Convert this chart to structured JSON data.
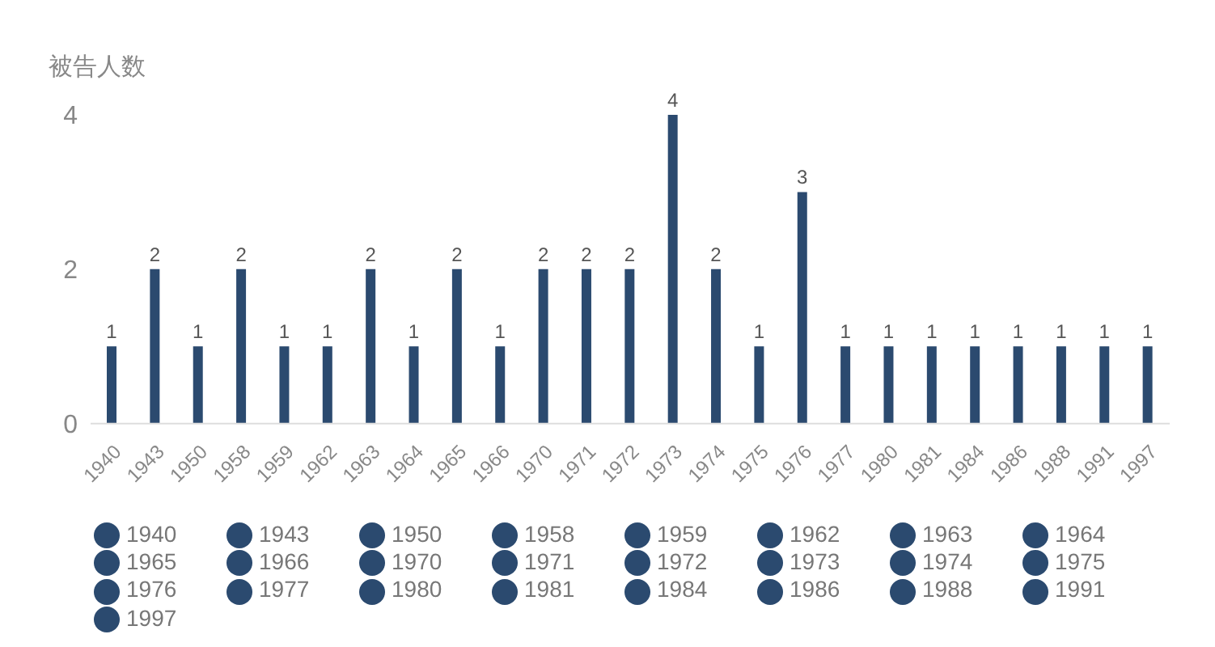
{
  "chart_data": {
    "type": "bar",
    "ylabel": "被告人数",
    "stacked": true,
    "categories": [
      "1940",
      "1943",
      "1950",
      "1958",
      "1959",
      "1962",
      "1963",
      "1964",
      "1965",
      "1966",
      "1970",
      "1971",
      "1972",
      "1973",
      "1974",
      "1975",
      "1976",
      "1977",
      "1980",
      "1981",
      "1984",
      "1986",
      "1988",
      "1991",
      "1997"
    ],
    "series": [
      {
        "name": "1940",
        "color": "#2b4a6f",
        "values": [
          1,
          null,
          null,
          null,
          null,
          null,
          null,
          null,
          null,
          null,
          null,
          null,
          null,
          null,
          null,
          null,
          null,
          null,
          null,
          null,
          null,
          null,
          null,
          null,
          null
        ]
      },
      {
        "name": "1943",
        "color": "#2b4a6f",
        "values": [
          null,
          2,
          null,
          null,
          null,
          null,
          null,
          null,
          null,
          null,
          null,
          null,
          null,
          null,
          null,
          null,
          null,
          null,
          null,
          null,
          null,
          null,
          null,
          null,
          null
        ]
      },
      {
        "name": "1950",
        "color": "#2b4a6f",
        "values": [
          null,
          null,
          1,
          null,
          null,
          null,
          null,
          null,
          null,
          null,
          null,
          null,
          null,
          null,
          null,
          null,
          null,
          null,
          null,
          null,
          null,
          null,
          null,
          null,
          null
        ]
      },
      {
        "name": "1958",
        "color": "#2b4a6f",
        "values": [
          null,
          null,
          null,
          2,
          null,
          null,
          null,
          null,
          null,
          null,
          null,
          null,
          null,
          null,
          null,
          null,
          null,
          null,
          null,
          null,
          null,
          null,
          null,
          null,
          null
        ]
      },
      {
        "name": "1959",
        "color": "#2b4a6f",
        "values": [
          null,
          null,
          null,
          null,
          1,
          null,
          null,
          null,
          null,
          null,
          null,
          null,
          null,
          null,
          null,
          null,
          null,
          null,
          null,
          null,
          null,
          null,
          null,
          null,
          null
        ]
      },
      {
        "name": "1962",
        "color": "#2b4a6f",
        "values": [
          null,
          null,
          null,
          null,
          null,
          1,
          null,
          null,
          null,
          null,
          null,
          null,
          null,
          null,
          null,
          null,
          null,
          null,
          null,
          null,
          null,
          null,
          null,
          null,
          null
        ]
      },
      {
        "name": "1963",
        "color": "#2b4a6f",
        "values": [
          null,
          null,
          null,
          null,
          null,
          null,
          2,
          null,
          null,
          null,
          null,
          null,
          null,
          null,
          null,
          null,
          null,
          null,
          null,
          null,
          null,
          null,
          null,
          null,
          null
        ]
      },
      {
        "name": "1964",
        "color": "#2b4a6f",
        "values": [
          null,
          null,
          null,
          null,
          null,
          null,
          null,
          1,
          null,
          null,
          null,
          null,
          null,
          null,
          null,
          null,
          null,
          null,
          null,
          null,
          null,
          null,
          null,
          null,
          null
        ]
      },
      {
        "name": "1965",
        "color": "#2b4a6f",
        "values": [
          null,
          null,
          null,
          null,
          null,
          null,
          null,
          null,
          2,
          null,
          null,
          null,
          null,
          null,
          null,
          null,
          null,
          null,
          null,
          null,
          null,
          null,
          null,
          null,
          null
        ]
      },
      {
        "name": "1966",
        "color": "#2b4a6f",
        "values": [
          null,
          null,
          null,
          null,
          null,
          null,
          null,
          null,
          null,
          1,
          null,
          null,
          null,
          null,
          null,
          null,
          null,
          null,
          null,
          null,
          null,
          null,
          null,
          null,
          null
        ]
      },
      {
        "name": "1970",
        "color": "#2b4a6f",
        "values": [
          null,
          null,
          null,
          null,
          null,
          null,
          null,
          null,
          null,
          null,
          2,
          null,
          null,
          null,
          null,
          null,
          null,
          null,
          null,
          null,
          null,
          null,
          null,
          null,
          null
        ]
      },
      {
        "name": "1971",
        "color": "#2b4a6f",
        "values": [
          null,
          null,
          null,
          null,
          null,
          null,
          null,
          null,
          null,
          null,
          null,
          2,
          null,
          null,
          null,
          null,
          null,
          null,
          null,
          null,
          null,
          null,
          null,
          null,
          null
        ]
      },
      {
        "name": "1972",
        "color": "#2b4a6f",
        "values": [
          null,
          null,
          null,
          null,
          null,
          null,
          null,
          null,
          null,
          null,
          null,
          null,
          2,
          null,
          null,
          null,
          null,
          null,
          null,
          null,
          null,
          null,
          null,
          null,
          null
        ]
      },
      {
        "name": "1973",
        "color": "#2b4a6f",
        "values": [
          null,
          null,
          null,
          null,
          null,
          null,
          null,
          null,
          null,
          null,
          null,
          null,
          null,
          4,
          null,
          null,
          null,
          null,
          null,
          null,
          null,
          null,
          null,
          null,
          null
        ]
      },
      {
        "name": "1974",
        "color": "#2b4a6f",
        "values": [
          null,
          null,
          null,
          null,
          null,
          null,
          null,
          null,
          null,
          null,
          null,
          null,
          null,
          null,
          2,
          null,
          null,
          null,
          null,
          null,
          null,
          null,
          null,
          null,
          null
        ]
      },
      {
        "name": "1975",
        "color": "#2b4a6f",
        "values": [
          null,
          null,
          null,
          null,
          null,
          null,
          null,
          null,
          null,
          null,
          null,
          null,
          null,
          null,
          null,
          1,
          null,
          null,
          null,
          null,
          null,
          null,
          null,
          null,
          null
        ]
      },
      {
        "name": "1976",
        "color": "#2b4a6f",
        "values": [
          null,
          null,
          null,
          null,
          null,
          null,
          null,
          null,
          null,
          null,
          null,
          null,
          null,
          null,
          null,
          null,
          3,
          null,
          null,
          null,
          null,
          null,
          null,
          null,
          null
        ]
      },
      {
        "name": "1977",
        "color": "#2b4a6f",
        "values": [
          null,
          null,
          null,
          null,
          null,
          null,
          null,
          null,
          null,
          null,
          null,
          null,
          null,
          null,
          null,
          null,
          null,
          1,
          null,
          null,
          null,
          null,
          null,
          null,
          null
        ]
      },
      {
        "name": "1980",
        "color": "#2b4a6f",
        "values": [
          null,
          null,
          null,
          null,
          null,
          null,
          null,
          null,
          null,
          null,
          null,
          null,
          null,
          null,
          null,
          null,
          null,
          null,
          1,
          null,
          null,
          null,
          null,
          null,
          null
        ]
      },
      {
        "name": "1981",
        "color": "#2b4a6f",
        "values": [
          null,
          null,
          null,
          null,
          null,
          null,
          null,
          null,
          null,
          null,
          null,
          null,
          null,
          null,
          null,
          null,
          null,
          null,
          null,
          1,
          null,
          null,
          null,
          null,
          null
        ]
      },
      {
        "name": "1984",
        "color": "#2b4a6f",
        "values": [
          null,
          null,
          null,
          null,
          null,
          null,
          null,
          null,
          null,
          null,
          null,
          null,
          null,
          null,
          null,
          null,
          null,
          null,
          null,
          null,
          1,
          null,
          null,
          null,
          null
        ]
      },
      {
        "name": "1986",
        "color": "#2b4a6f",
        "values": [
          null,
          null,
          null,
          null,
          null,
          null,
          null,
          null,
          null,
          null,
          null,
          null,
          null,
          null,
          null,
          null,
          null,
          null,
          null,
          null,
          null,
          1,
          null,
          null,
          null
        ]
      },
      {
        "name": "1988",
        "color": "#2b4a6f",
        "values": [
          null,
          null,
          null,
          null,
          null,
          null,
          null,
          null,
          null,
          null,
          null,
          null,
          null,
          null,
          null,
          null,
          null,
          null,
          null,
          null,
          null,
          null,
          1,
          null,
          null
        ]
      },
      {
        "name": "1991",
        "color": "#2b4a6f",
        "values": [
          null,
          null,
          null,
          null,
          null,
          null,
          null,
          null,
          null,
          null,
          null,
          null,
          null,
          null,
          null,
          null,
          null,
          null,
          null,
          null,
          null,
          null,
          null,
          1,
          null
        ]
      },
      {
        "name": "1997",
        "color": "#2b4a6f",
        "values": [
          null,
          null,
          null,
          null,
          null,
          null,
          null,
          null,
          null,
          null,
          null,
          null,
          null,
          null,
          null,
          null,
          null,
          null,
          null,
          null,
          null,
          null,
          null,
          null,
          1
        ]
      }
    ],
    "ylim": [
      0,
      4
    ],
    "yticks": [
      0,
      2,
      4
    ],
    "data_labels": true,
    "legend": "bottom"
  }
}
